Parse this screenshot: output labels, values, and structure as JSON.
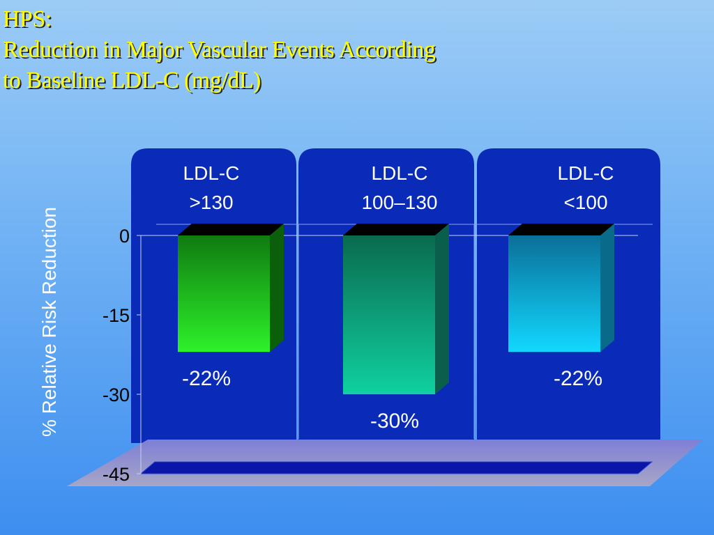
{
  "slide": {
    "title_lines": [
      "HPS:",
      "Reduction in Major Vascular Events According",
      "to Baseline LDL-C (mg/dL)"
    ]
  },
  "chart_data": {
    "type": "bar",
    "title": "HPS: Reduction in Major Vascular Events According to Baseline LDL-C (mg/dL)",
    "ylabel": "% Relative Risk Reduction",
    "ylim": [
      -45,
      0
    ],
    "yticks": [
      0,
      -15,
      -30,
      -45
    ],
    "categories": [
      {
        "lines": [
          "LDL-C",
          ">130"
        ]
      },
      {
        "lines": [
          "LDL-C",
          "100–130"
        ]
      },
      {
        "lines": [
          "LDL-C",
          "<100"
        ]
      }
    ],
    "values": [
      -22,
      -30,
      -22
    ],
    "data_labels": [
      "-22%",
      "-30%",
      "-22%"
    ],
    "colors": {
      "panel": "#0a2bb8",
      "bars": [
        {
          "top": "#0f7a10",
          "bottom": "#2ef22a",
          "side": "#0b5f0b"
        },
        {
          "top": "#0a6a4e",
          "bottom": "#0fd1a0",
          "side": "#0a5f4a"
        },
        {
          "top": "#0a6f98",
          "bottom": "#12d8ff",
          "side": "#0a6a8a"
        }
      ]
    }
  }
}
